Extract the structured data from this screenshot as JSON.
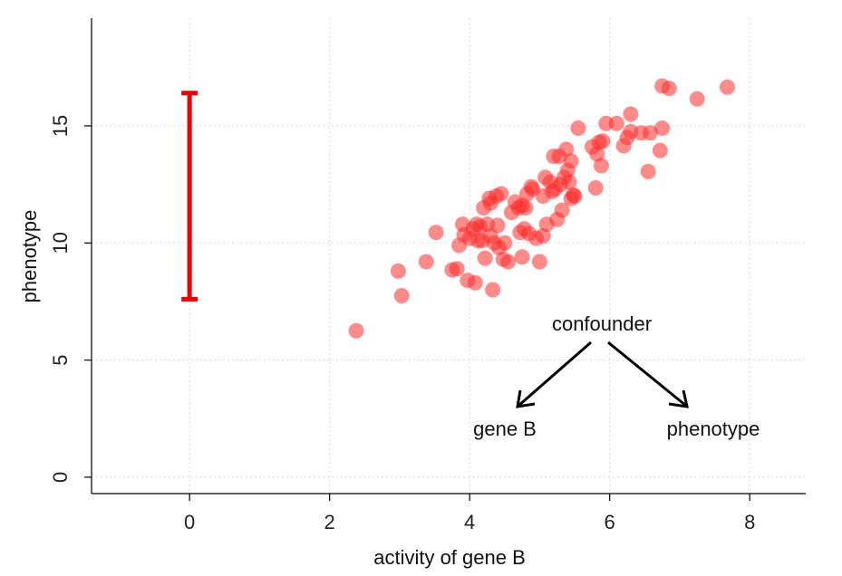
{
  "chart_data": {
    "type": "scatter",
    "xlabel": "activity of gene B",
    "ylabel": "phenotype",
    "xlim": [
      -1.4,
      8.8
    ],
    "ylim": [
      -0.7,
      19.6
    ],
    "x_ticks": [
      0,
      2,
      4,
      6,
      8
    ],
    "y_ticks": [
      0,
      5,
      10,
      15
    ],
    "grid": true,
    "point_color": "#ff2a2a",
    "bar_color": "#ee0000",
    "error_bar": {
      "x": 0,
      "ymin": 7.6,
      "ymax": 16.4
    },
    "points": [
      [
        2.38,
        6.25
      ],
      [
        3.03,
        7.75
      ],
      [
        2.98,
        8.8
      ],
      [
        3.38,
        9.2
      ],
      [
        3.52,
        10.45
      ],
      [
        3.75,
        8.85
      ],
      [
        3.82,
        8.9
      ],
      [
        3.85,
        9.9
      ],
      [
        3.9,
        10.8
      ],
      [
        3.92,
        10.35
      ],
      [
        3.97,
        8.4
      ],
      [
        4.0,
        10.2
      ],
      [
        4.05,
        10.6
      ],
      [
        4.08,
        8.3
      ],
      [
        4.1,
        10.8
      ],
      [
        4.12,
        10.1
      ],
      [
        4.15,
        10.7
      ],
      [
        4.18,
        10.1
      ],
      [
        4.2,
        11.5
      ],
      [
        4.22,
        9.35
      ],
      [
        4.25,
        10.8
      ],
      [
        4.28,
        11.9
      ],
      [
        4.3,
        11.7
      ],
      [
        4.3,
        10.3
      ],
      [
        4.33,
        8.0
      ],
      [
        4.35,
        10.0
      ],
      [
        4.38,
        12.0
      ],
      [
        4.4,
        10.75
      ],
      [
        4.42,
        9.8
      ],
      [
        4.45,
        12.1
      ],
      [
        4.48,
        9.3
      ],
      [
        4.5,
        10.0
      ],
      [
        4.55,
        9.2
      ],
      [
        4.6,
        11.3
      ],
      [
        4.65,
        11.75
      ],
      [
        4.7,
        11.5
      ],
      [
        4.72,
        10.45
      ],
      [
        4.75,
        11.6
      ],
      [
        4.75,
        9.4
      ],
      [
        4.78,
        10.6
      ],
      [
        4.8,
        11.5
      ],
      [
        4.82,
        12.1
      ],
      [
        4.85,
        10.4
      ],
      [
        4.88,
        12.4
      ],
      [
        4.9,
        12.3
      ],
      [
        4.95,
        10.2
      ],
      [
        5.0,
        9.2
      ],
      [
        5.05,
        10.3
      ],
      [
        5.05,
        12.0
      ],
      [
        5.08,
        12.8
      ],
      [
        5.1,
        10.8
      ],
      [
        5.15,
        12.6
      ],
      [
        5.18,
        12.2
      ],
      [
        5.2,
        13.7
      ],
      [
        5.22,
        12.3
      ],
      [
        5.25,
        11.0
      ],
      [
        5.28,
        13.7
      ],
      [
        5.3,
        12.5
      ],
      [
        5.32,
        11.4
      ],
      [
        5.35,
        12.8
      ],
      [
        5.38,
        14.0
      ],
      [
        5.4,
        13.1
      ],
      [
        5.42,
        12.6
      ],
      [
        5.45,
        11.9
      ],
      [
        5.45,
        13.5
      ],
      [
        5.48,
        12.05
      ],
      [
        5.5,
        12.0
      ],
      [
        5.55,
        14.9
      ],
      [
        5.75,
        14.1
      ],
      [
        5.8,
        12.35
      ],
      [
        5.82,
        13.8
      ],
      [
        5.85,
        14.3
      ],
      [
        5.88,
        13.3
      ],
      [
        5.9,
        14.35
      ],
      [
        5.95,
        15.1
      ],
      [
        6.1,
        15.1
      ],
      [
        6.2,
        14.15
      ],
      [
        6.25,
        14.5
      ],
      [
        6.3,
        15.5
      ],
      [
        6.3,
        14.75
      ],
      [
        6.45,
        14.7
      ],
      [
        6.55,
        13.05
      ],
      [
        6.58,
        14.7
      ],
      [
        6.72,
        13.95
      ],
      [
        6.75,
        14.9
      ],
      [
        6.75,
        16.7
      ],
      [
        6.85,
        16.6
      ],
      [
        7.25,
        16.15
      ],
      [
        7.68,
        16.65
      ]
    ],
    "annotation": {
      "top": "confounder",
      "left": "gene B",
      "right": "phenotype"
    }
  }
}
